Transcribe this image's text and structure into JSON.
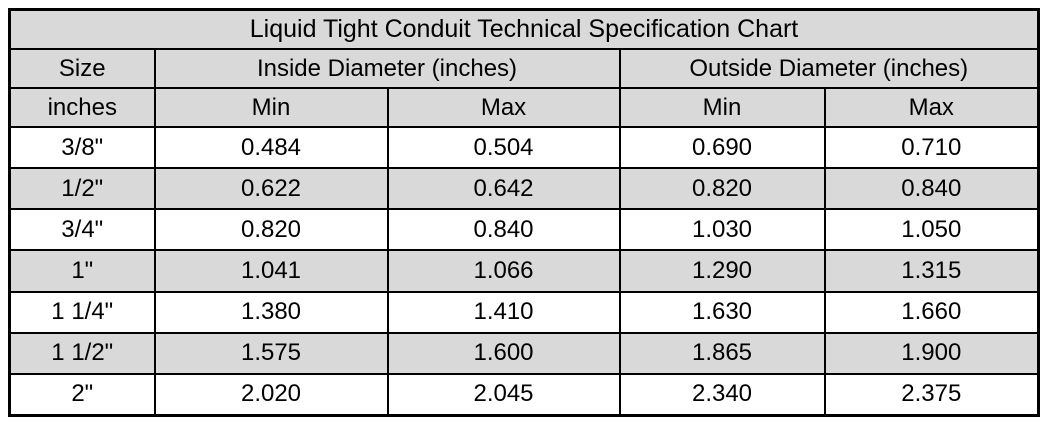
{
  "table": {
    "title": "Liquid Tight Conduit Technical Specification Chart",
    "headers": {
      "size_group": "Size",
      "size_unit": "inches",
      "inside_group": "Inside Diameter (inches)",
      "outside_group": "Outside Diameter (inches)",
      "min": "Min",
      "max": "Max"
    },
    "row_keys": [
      "size",
      "id_min",
      "id_max",
      "od_min",
      "od_max"
    ],
    "rows": [
      {
        "size": "3/8\"",
        "id_min": "0.484",
        "id_max": "0.504",
        "od_min": "0.690",
        "od_max": "0.710"
      },
      {
        "size": "1/2\"",
        "id_min": "0.622",
        "id_max": "0.642",
        "od_min": "0.820",
        "od_max": "0.840"
      },
      {
        "size": "3/4\"",
        "id_min": "0.820",
        "id_max": "0.840",
        "od_min": "1.030",
        "od_max": "1.050"
      },
      {
        "size": "1\"",
        "id_min": "1.041",
        "id_max": "1.066",
        "od_min": "1.290",
        "od_max": "1.315"
      },
      {
        "size": "1 1/4\"",
        "id_min": "1.380",
        "id_max": "1.410",
        "od_min": "1.630",
        "od_max": "1.660"
      },
      {
        "size": "1 1/2\"",
        "id_min": "1.575",
        "id_max": "1.600",
        "od_min": "1.865",
        "od_max": "1.900"
      },
      {
        "size": "2\"",
        "id_min": "2.020",
        "id_max": "2.045",
        "od_min": "2.340",
        "od_max": "2.375"
      }
    ]
  },
  "colors": {
    "header_bg": "#d9d9d9",
    "row_bg": "#ffffff",
    "row_alt_bg": "#d9d9d9",
    "border": "#000000",
    "text": "#000000"
  }
}
